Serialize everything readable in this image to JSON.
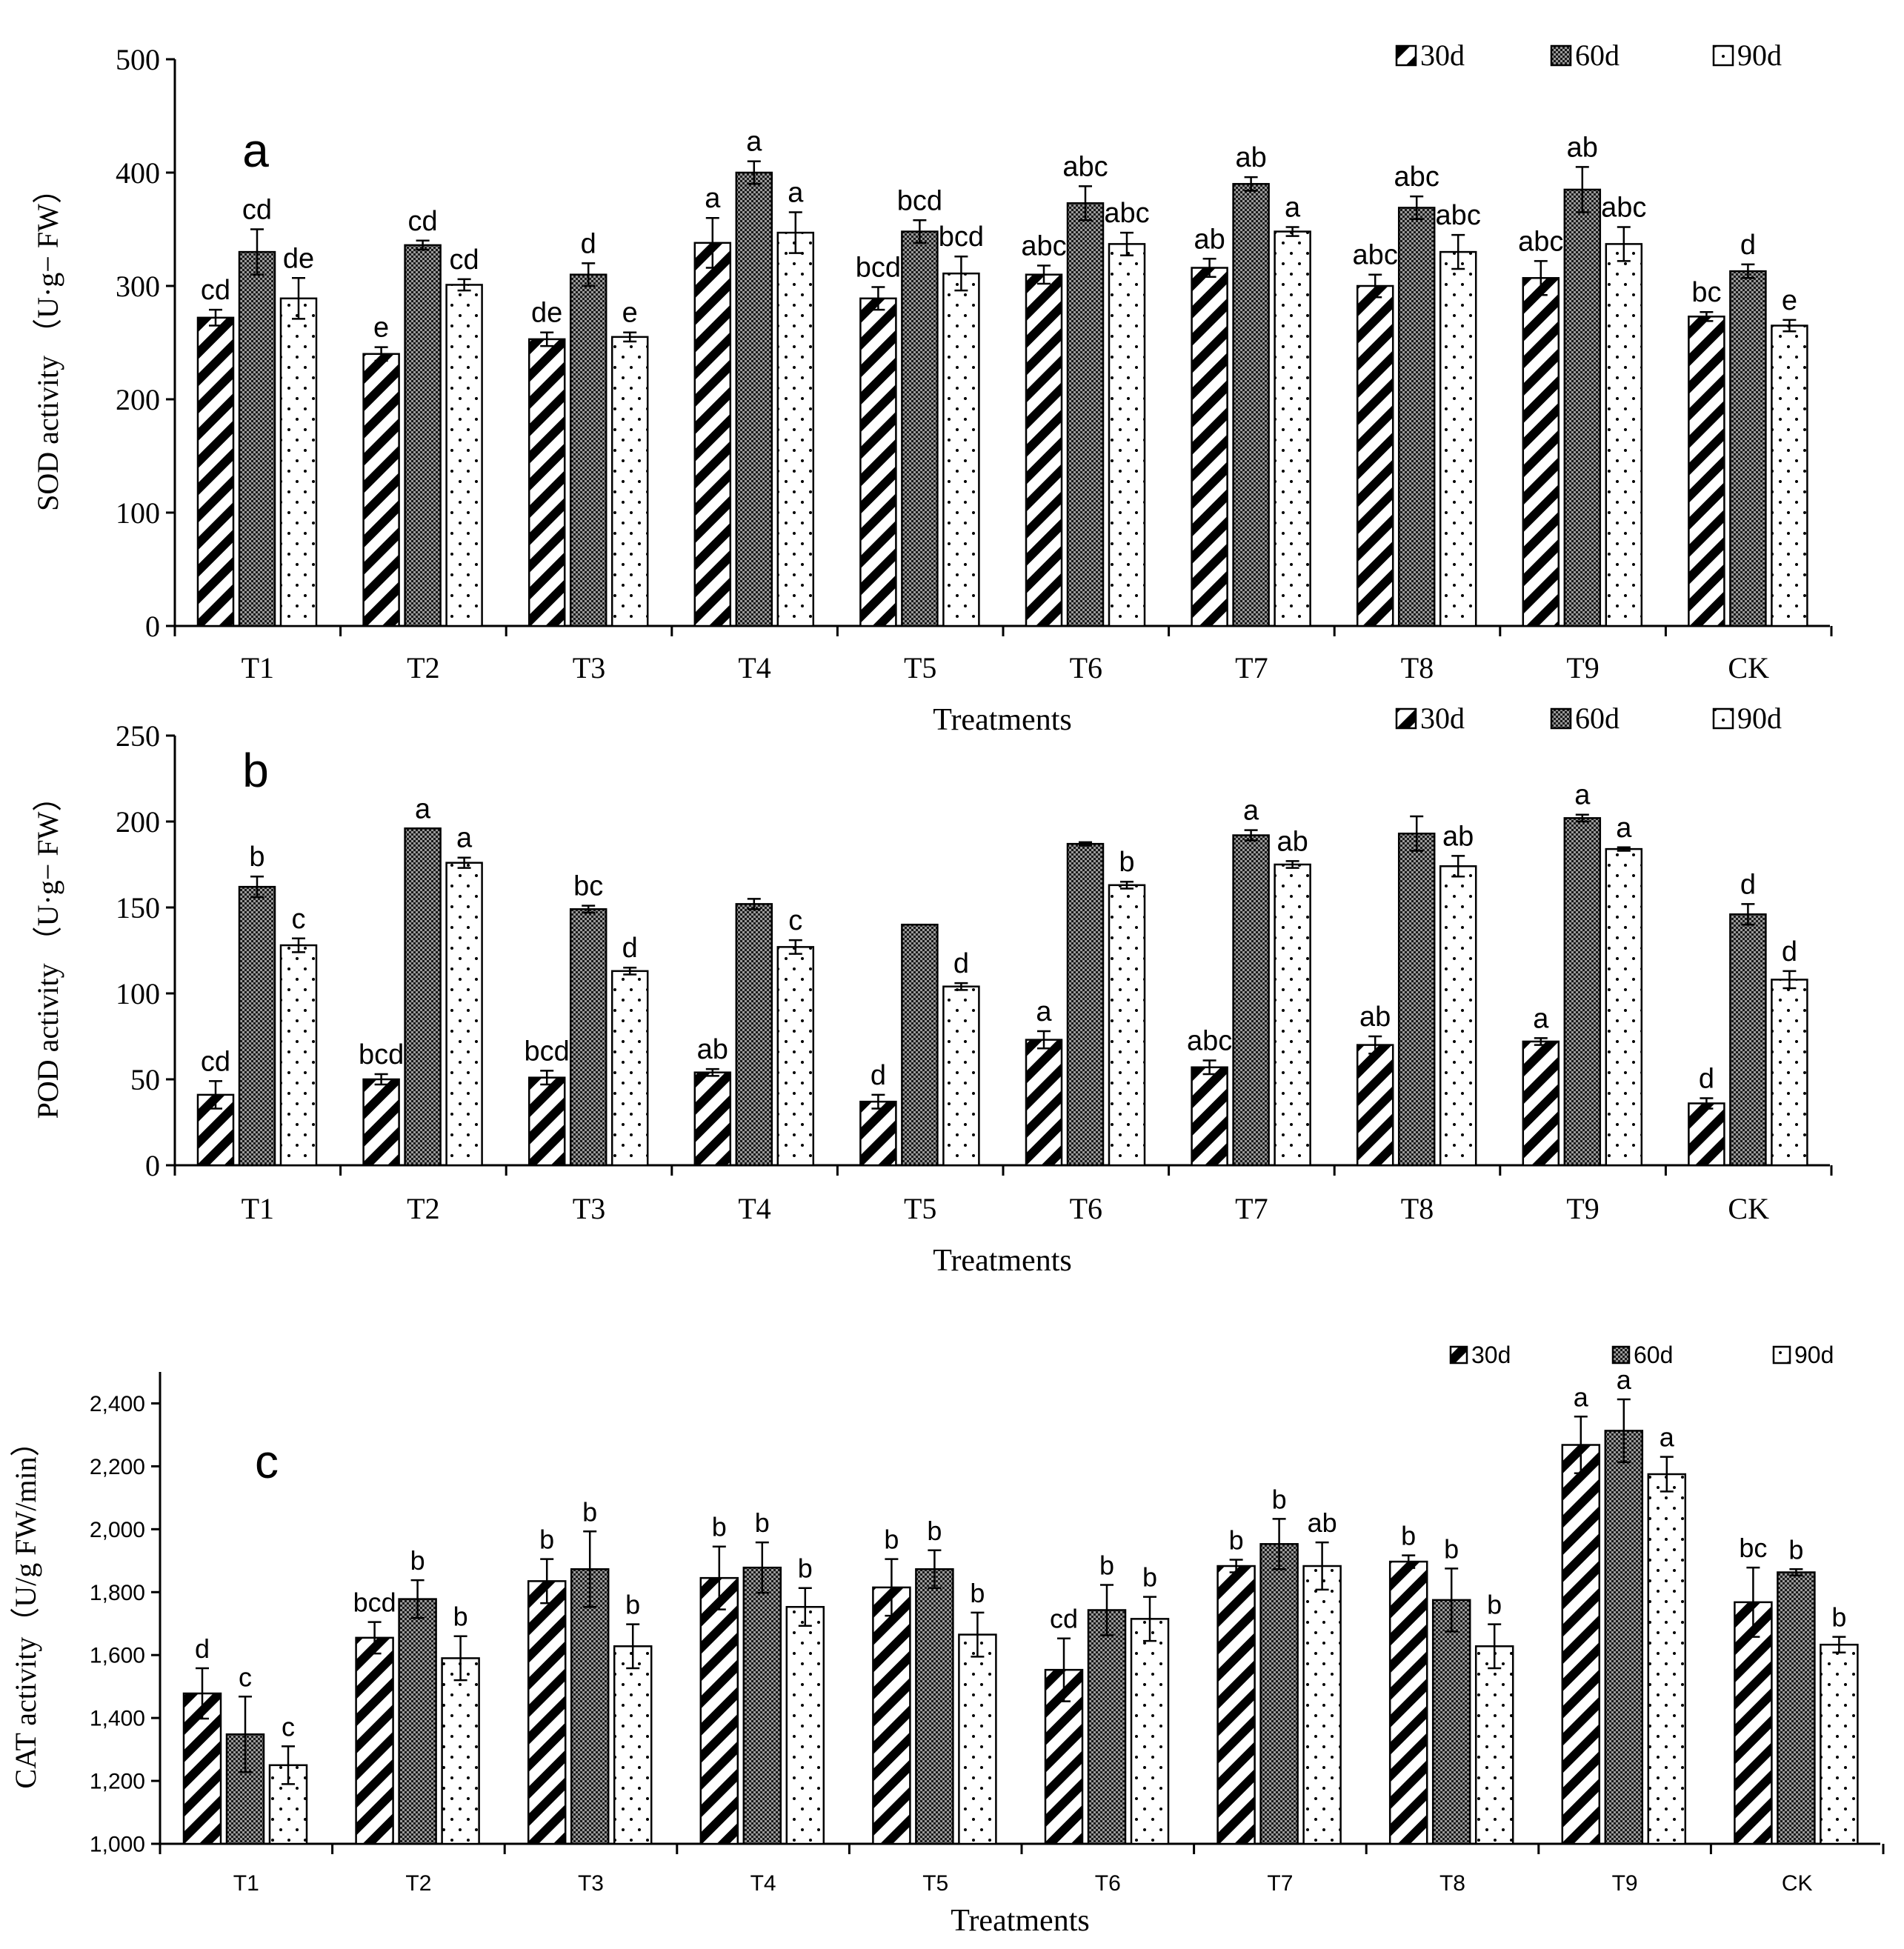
{
  "chart_data": [
    {
      "type": "bar",
      "panel_letter": "a",
      "title": "",
      "xlabel": "Treatments",
      "ylabel": "SOD activity （U·g− FW）",
      "ylim": [
        0,
        500
      ],
      "yticks": [
        0,
        100,
        200,
        300,
        400,
        500
      ],
      "ytick_labels": [
        "0",
        "100",
        "200",
        "300",
        "400",
        "500"
      ],
      "categories": [
        "T1",
        "T2",
        "T3",
        "T4",
        "T5",
        "T6",
        "T7",
        "T8",
        "T9",
        "CK"
      ],
      "legend": [
        "30d",
        "60d",
        "90d"
      ],
      "legend_position": "top-right",
      "series": [
        {
          "name": "30d",
          "values": [
            272,
            240,
            253,
            338,
            289,
            310,
            316,
            300,
            307,
            273
          ],
          "errors": [
            7,
            6,
            6,
            22,
            10,
            8,
            8,
            10,
            15,
            4
          ],
          "letters": [
            "cd",
            "e",
            "de",
            "a",
            "bcd",
            "abc",
            "ab",
            "abc",
            "abc",
            "bc"
          ]
        },
        {
          "name": "60d",
          "values": [
            330,
            336,
            310,
            400,
            348,
            373,
            390,
            369,
            385,
            313
          ],
          "errors": [
            20,
            4,
            10,
            10,
            10,
            15,
            6,
            10,
            20,
            6
          ],
          "letters": [
            "cd",
            "cd",
            "d",
            "a",
            "bcd",
            "abc",
            "ab",
            "abc",
            "ab",
            "d"
          ]
        },
        {
          "name": "90d",
          "values": [
            289,
            301,
            255,
            347,
            311,
            337,
            348,
            330,
            337,
            265
          ],
          "errors": [
            18,
            5,
            4,
            18,
            15,
            10,
            4,
            15,
            15,
            5
          ],
          "letters": [
            "de",
            "cd",
            "e",
            "a",
            "bcd",
            "abc",
            "a",
            "abc",
            "abc",
            "e"
          ]
        }
      ]
    },
    {
      "type": "bar",
      "panel_letter": "b",
      "title": "",
      "xlabel": "Treatments",
      "ylabel": "POD activity （U·g− FW）",
      "ylim": [
        0,
        250
      ],
      "yticks": [
        0,
        50,
        100,
        150,
        200,
        250
      ],
      "ytick_labels": [
        "0",
        "50",
        "100",
        "150",
        "200",
        "250"
      ],
      "categories": [
        "T1",
        "T2",
        "T3",
        "T4",
        "T5",
        "T6",
        "T7",
        "T8",
        "T9",
        "CK"
      ],
      "legend": [
        "30d",
        "60d",
        "90d"
      ],
      "legend_position": "top-right",
      "series": [
        {
          "name": "30d",
          "values": [
            41,
            50,
            51,
            54,
            37,
            73,
            57,
            70,
            72,
            36
          ],
          "errors": [
            8,
            3,
            4,
            2,
            4,
            5,
            4,
            5,
            2,
            3
          ],
          "letters": [
            "cd",
            "bcd",
            "bcd",
            "ab",
            "d",
            "a",
            "abc",
            "ab",
            "a",
            "d"
          ]
        },
        {
          "name": "60d",
          "values": [
            162,
            196,
            149,
            152,
            140,
            187,
            192,
            193,
            202,
            146
          ],
          "errors": [
            6,
            0,
            2,
            3,
            0,
            1,
            3,
            10,
            2,
            6
          ],
          "letters": [
            "b",
            "a",
            "bc",
            "",
            "",
            "",
            "a",
            "",
            "a",
            "d"
          ]
        },
        {
          "name": "90d",
          "values": [
            128,
            176,
            113,
            127,
            104,
            163,
            175,
            174,
            184,
            108
          ],
          "errors": [
            4,
            3,
            2,
            4,
            2,
            2,
            2,
            6,
            1,
            5
          ],
          "letters": [
            "c",
            "a",
            "d",
            "c",
            "d",
            "b",
            "ab",
            "ab",
            "a",
            "d"
          ]
        }
      ]
    },
    {
      "type": "bar",
      "panel_letter": "c",
      "title": "",
      "xlabel": "Treatments",
      "ylabel": "CAT activity（U/g FW/min）",
      "ylim": [
        1000,
        2500
      ],
      "yticks": [
        1000,
        1200,
        1400,
        1600,
        1800,
        2000,
        2200,
        2400
      ],
      "ytick_labels": [
        "1,000",
        "1,200",
        "1,400",
        "1,600",
        "1,800",
        "2,000",
        "2,200",
        "2,400"
      ],
      "categories": [
        "T1",
        "T2",
        "T3",
        "T4",
        "T5",
        "T6",
        "T7",
        "T8",
        "T9",
        "CK"
      ],
      "legend": [
        "30d",
        "60d",
        "90d"
      ],
      "legend_position": "top-right",
      "series": [
        {
          "name": "30d",
          "values": [
            1478,
            1655,
            1835,
            1845,
            1815,
            1553,
            1883,
            1897,
            2268,
            1768
          ],
          "errors": [
            80,
            50,
            70,
            100,
            90,
            100,
            20,
            20,
            90,
            110
          ],
          "letters": [
            "d",
            "bcd",
            "b",
            "b",
            "b",
            "cd",
            "b",
            "b",
            "a",
            "bc"
          ]
        },
        {
          "name": "60d",
          "values": [
            1348,
            1778,
            1873,
            1878,
            1873,
            1743,
            1953,
            1775,
            2313,
            1863
          ],
          "errors": [
            120,
            60,
            120,
            80,
            60,
            80,
            80,
            100,
            100,
            10
          ],
          "letters": [
            "c",
            "b",
            "b",
            "b",
            "b",
            "b",
            "b",
            "b",
            "a",
            "b"
          ]
        },
        {
          "name": "90d",
          "values": [
            1250,
            1590,
            1628,
            1753,
            1665,
            1715,
            1883,
            1628,
            2175,
            1633
          ],
          "errors": [
            60,
            70,
            70,
            60,
            70,
            70,
            75,
            70,
            55,
            25
          ],
          "letters": [
            "c",
            "b",
            "b",
            "b",
            "b",
            "b",
            "ab",
            "b",
            "a",
            "b"
          ]
        }
      ]
    }
  ]
}
